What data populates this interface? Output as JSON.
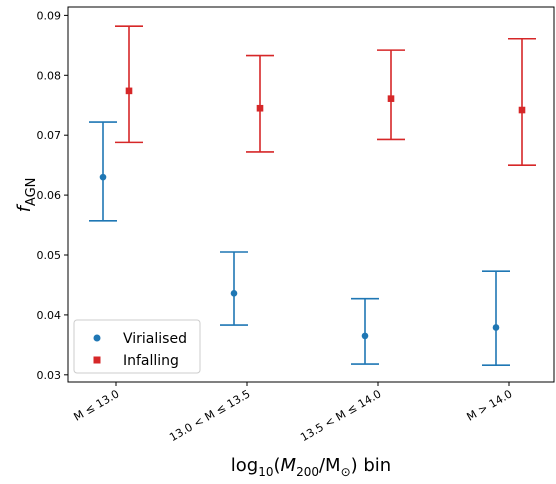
{
  "chart_data": {
    "type": "scatter",
    "categories": [
      "M ≤ 13.0",
      "13.0 < M ≤ 13.5",
      "13.5 < M ≤ 14.0",
      "M > 14.0"
    ],
    "xlabel": {
      "prefix": "log",
      "sub1": "10",
      "mid1": "(",
      "italic": "M",
      "sub2": "200",
      "mid2": "/M",
      "sub3": "⊙",
      "suffix": ") bin"
    },
    "ylabel": {
      "italic": "f",
      "sub": "AGN"
    },
    "ylim": [
      0.0288,
      0.0914
    ],
    "yticks": [
      0.03,
      0.04,
      0.05,
      0.06,
      0.07,
      0.08,
      0.09
    ],
    "ytick_labels": [
      "0.03",
      "0.04",
      "0.05",
      "0.06",
      "0.07",
      "0.08",
      "0.09"
    ],
    "grid": false,
    "legend_position": "lower-left",
    "series": [
      {
        "name": "Virialised",
        "marker": "circle",
        "color": "#1f77b4",
        "values": [
          0.063,
          0.0436,
          0.0365,
          0.0379
        ],
        "lower": [
          0.0557,
          0.0383,
          0.0318,
          0.0316
        ],
        "upper": [
          0.0722,
          0.0505,
          0.0427,
          0.0473
        ]
      },
      {
        "name": "Infalling",
        "marker": "square",
        "color": "#d62728",
        "values": [
          0.0774,
          0.0745,
          0.0761,
          0.0742
        ],
        "lower": [
          0.0688,
          0.0672,
          0.0693,
          0.065
        ],
        "upper": [
          0.0882,
          0.0833,
          0.0842,
          0.0861
        ]
      }
    ]
  }
}
